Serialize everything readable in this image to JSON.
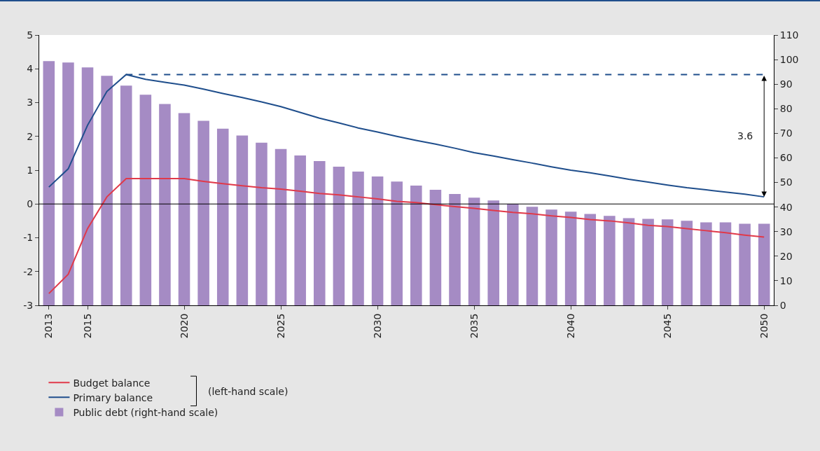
{
  "chart_data": {
    "type": "line",
    "x": [
      2013,
      2014,
      2015,
      2016,
      2017,
      2018,
      2019,
      2020,
      2021,
      2022,
      2023,
      2024,
      2025,
      2026,
      2027,
      2028,
      2029,
      2030,
      2031,
      2032,
      2033,
      2034,
      2035,
      2036,
      2037,
      2038,
      2039,
      2040,
      2041,
      2042,
      2043,
      2044,
      2045,
      2046,
      2047,
      2048,
      2049,
      2050
    ],
    "series": [
      {
        "name": "Budget balance",
        "color": "#e0394a",
        "axis": "y",
        "line_style": "solid",
        "values": [
          -2.65,
          -2.08,
          -0.73,
          0.21,
          0.75,
          0.75,
          0.75,
          0.75,
          0.67,
          0.6,
          0.54,
          0.48,
          0.44,
          0.38,
          0.31,
          0.27,
          0.21,
          0.15,
          0.08,
          0.04,
          -0.02,
          -0.08,
          -0.13,
          -0.19,
          -0.25,
          -0.29,
          -0.35,
          -0.4,
          -0.46,
          -0.5,
          -0.56,
          -0.63,
          -0.67,
          -0.73,
          -0.79,
          -0.85,
          -0.92,
          -0.98
        ]
      },
      {
        "name": "Primary balance",
        "color": "#1f4e8c",
        "axis": "y",
        "line_style": "solid",
        "values": [
          0.5,
          1.04,
          2.33,
          3.33,
          3.83,
          3.69,
          3.6,
          3.52,
          3.4,
          3.27,
          3.15,
          3.02,
          2.88,
          2.71,
          2.54,
          2.4,
          2.25,
          2.13,
          2.0,
          1.88,
          1.77,
          1.65,
          1.52,
          1.42,
          1.31,
          1.21,
          1.1,
          1.0,
          0.92,
          0.83,
          0.73,
          0.65,
          0.56,
          0.48,
          0.42,
          0.35,
          0.29,
          0.21
        ]
      },
      {
        "name": "Public debt (right-hand scale)",
        "type": "bar",
        "color": "#a58bc4",
        "axis": "y2",
        "values": [
          99.4,
          98.8,
          96.8,
          93.4,
          89.4,
          85.7,
          81.9,
          78.2,
          75.1,
          71.9,
          69.1,
          66.2,
          63.6,
          61.0,
          58.7,
          56.4,
          54.4,
          52.4,
          50.4,
          48.7,
          47.0,
          45.3,
          43.8,
          42.7,
          41.3,
          40.1,
          39.0,
          38.1,
          37.2,
          36.4,
          35.5,
          35.2,
          35.0,
          34.4,
          33.8,
          33.8,
          33.2,
          33.2
        ]
      },
      {
        "color": "#1f4e8c",
        "axis": "y",
        "line_style": "dashed",
        "x": [
          2017,
          2050
        ],
        "values": [
          3.83,
          3.83
        ]
      }
    ],
    "xlim": [
      2012.5,
      2050.5
    ],
    "xticks": [
      2013,
      2015,
      2020,
      2025,
      2030,
      2035,
      2040,
      2045,
      2050
    ],
    "ylim": [
      -3,
      5
    ],
    "yticks": [
      -3,
      -2,
      -1,
      0,
      1,
      2,
      3,
      4,
      5
    ],
    "y2lim": [
      0,
      110
    ],
    "y2ticks": [
      0,
      10,
      20,
      30,
      40,
      50,
      60,
      70,
      80,
      90,
      100,
      110
    ],
    "ref_lines": [
      {
        "axis": "y",
        "value": 0,
        "color": "#000000",
        "line_style": "solid"
      }
    ],
    "annotations": [
      "3.6",
      "(left-hand scale)"
    ],
    "grid": false,
    "legend": "bottom left",
    "marker": "none"
  }
}
